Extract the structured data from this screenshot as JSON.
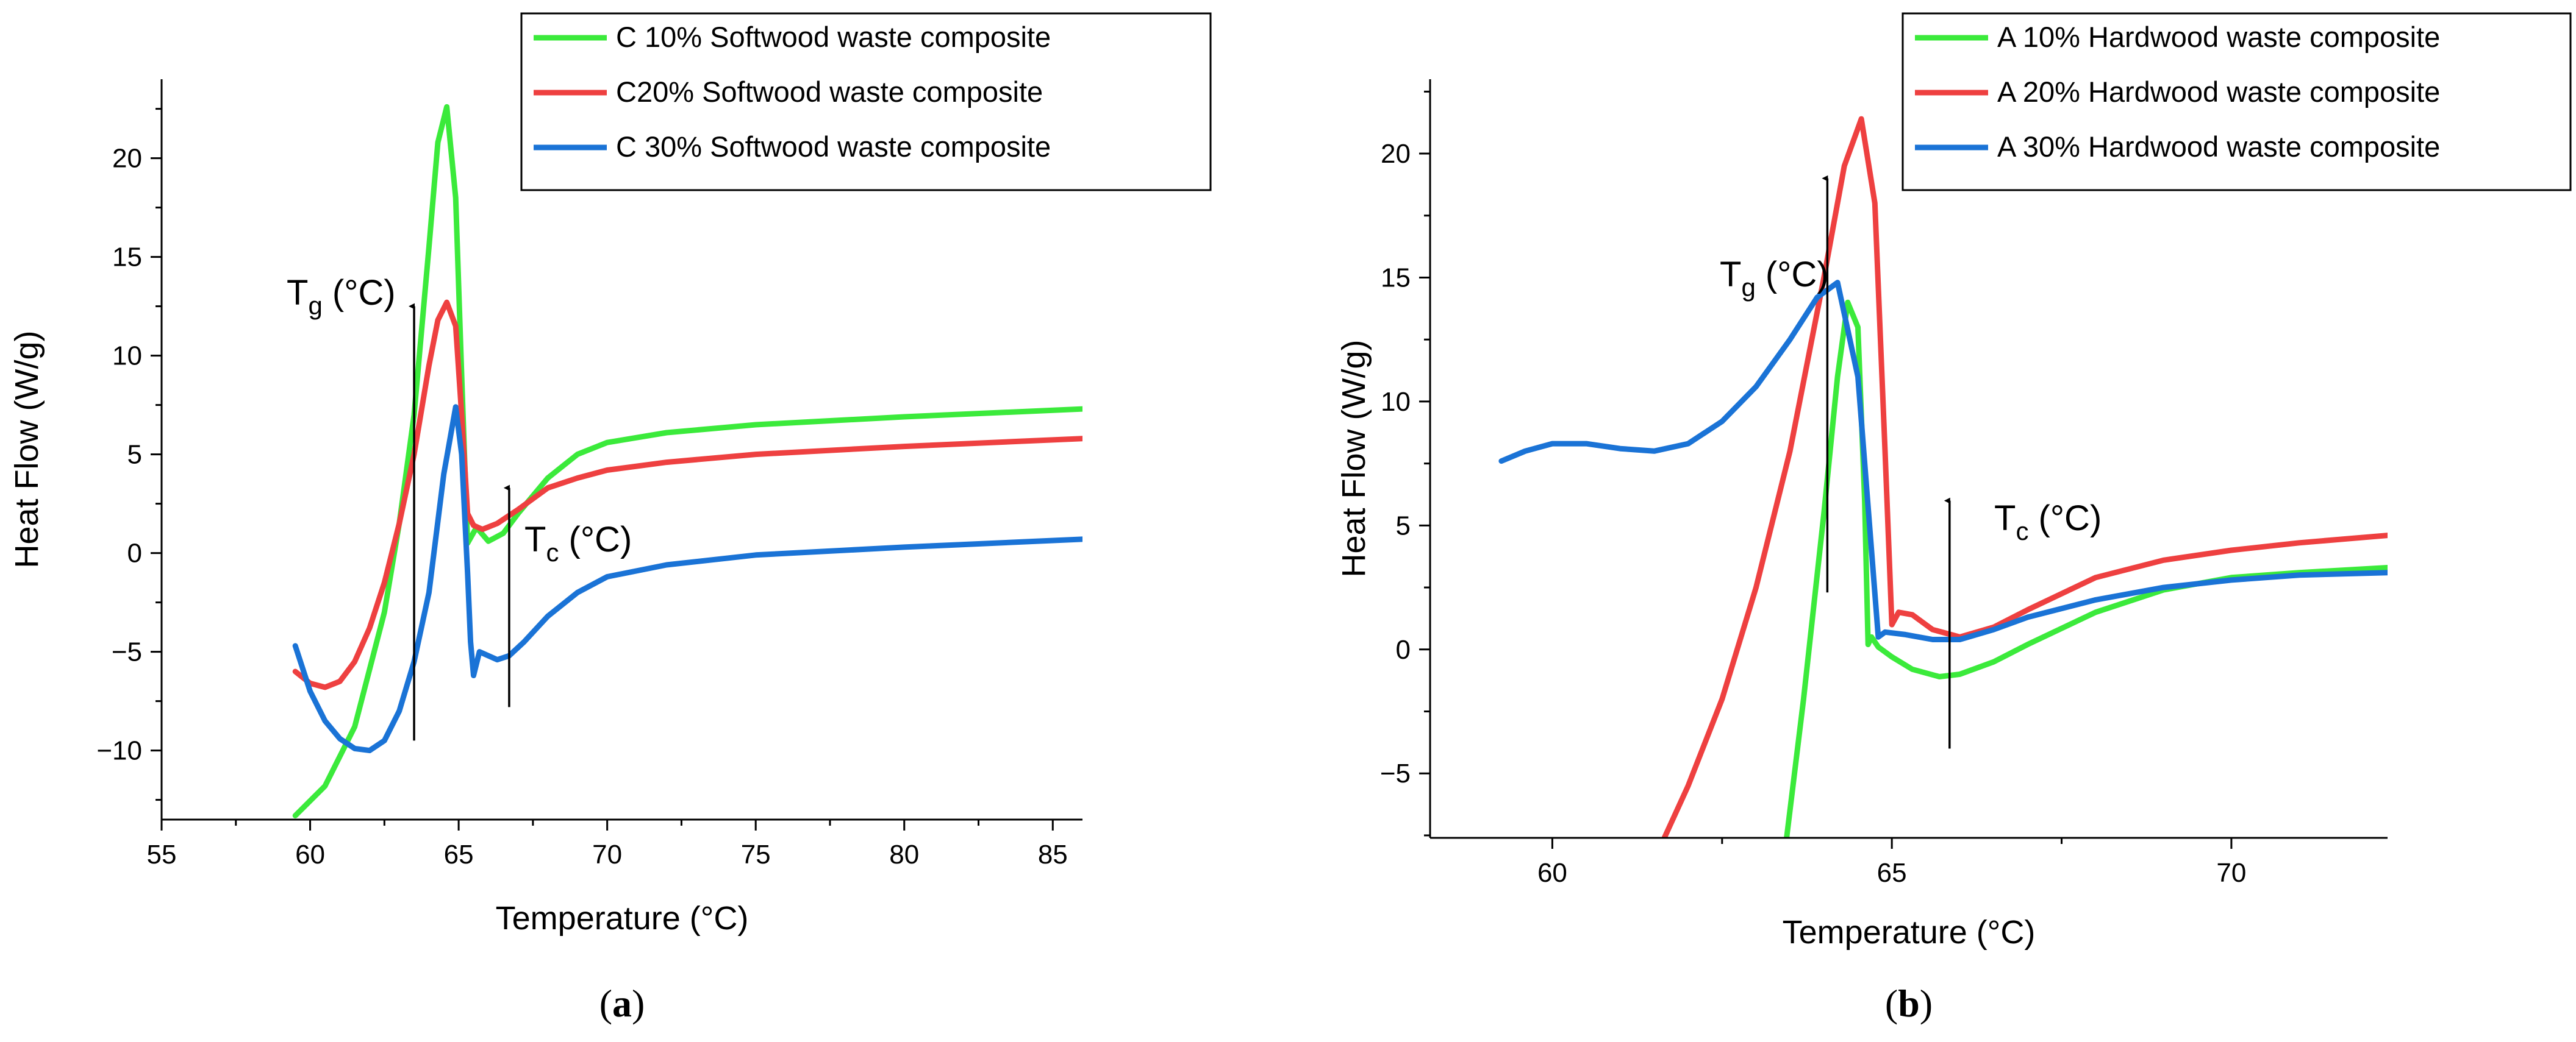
{
  "chart_data": [
    {
      "type": "line",
      "panel_label": {
        "open": "(",
        "letter": "a",
        "close": ")"
      },
      "xlabel": "Temperature (°C)",
      "ylabel": "Heat Flow (W/g)",
      "xlim": [
        55,
        86
      ],
      "ylim": [
        -13.5,
        24
      ],
      "xticks": [
        55,
        60,
        65,
        70,
        75,
        80,
        85
      ],
      "yticks": [
        -10,
        -5,
        0,
        5,
        10,
        15,
        20
      ],
      "legend_position": "top-right",
      "series": [
        {
          "name": "C 10% Softwood waste composite",
          "color": "#3bea3b",
          "x": [
            59.5,
            60.5,
            61.5,
            62.5,
            63.0,
            63.5,
            64.0,
            64.3,
            64.6,
            64.9,
            65.1,
            65.3,
            65.6,
            66.0,
            66.5,
            67.0,
            68.0,
            69.0,
            70.0,
            72.0,
            75.0,
            80.0,
            86.0
          ],
          "y": [
            -13.3,
            -11.8,
            -8.8,
            -3.0,
            1.5,
            7.0,
            15.5,
            20.8,
            22.6,
            18.0,
            9.0,
            0.5,
            1.3,
            0.6,
            1.0,
            2.0,
            3.8,
            5.0,
            5.6,
            6.1,
            6.5,
            6.9,
            7.3
          ]
        },
        {
          "name": "C20% Softwood waste composite",
          "color": "#ee4040",
          "x": [
            59.5,
            60.0,
            60.5,
            61.0,
            61.5,
            62.0,
            62.5,
            63.0,
            63.5,
            64.0,
            64.3,
            64.6,
            64.9,
            65.1,
            65.3,
            65.5,
            65.8,
            66.3,
            67.0,
            68.0,
            69.0,
            70.0,
            72.0,
            75.0,
            80.0,
            86.0
          ],
          "y": [
            -6.0,
            -6.6,
            -6.8,
            -6.5,
            -5.5,
            -3.8,
            -1.5,
            1.5,
            5.0,
            9.5,
            11.8,
            12.7,
            11.5,
            7.0,
            2.0,
            1.4,
            1.2,
            1.5,
            2.2,
            3.3,
            3.8,
            4.2,
            4.6,
            5.0,
            5.4,
            5.8
          ]
        },
        {
          "name": "C 30% Softwood waste composite",
          "color": "#1a73d6",
          "x": [
            59.5,
            60.0,
            60.5,
            61.0,
            61.5,
            62.0,
            62.5,
            63.0,
            63.5,
            64.0,
            64.5,
            64.9,
            65.1,
            65.3,
            65.4,
            65.5,
            65.7,
            66.0,
            66.3,
            66.7,
            67.2,
            68.0,
            69.0,
            70.0,
            72.0,
            75.0,
            80.0,
            86.0
          ],
          "y": [
            -4.7,
            -7.0,
            -8.5,
            -9.4,
            -9.9,
            -10.0,
            -9.5,
            -8.0,
            -5.5,
            -2.0,
            4.0,
            7.4,
            5.0,
            -1.0,
            -4.5,
            -6.2,
            -5.0,
            -5.2,
            -5.4,
            -5.2,
            -4.5,
            -3.2,
            -2.0,
            -1.2,
            -0.6,
            -0.1,
            0.3,
            0.7
          ]
        }
      ],
      "annotations": [
        {
          "main": "T",
          "sub": "g",
          "suffix": " (°C)",
          "arrow_x": 63.5,
          "arrow_from": -9.5,
          "arrow_to": 12.5
        },
        {
          "main": "T",
          "sub": "c",
          "suffix": " (°C)",
          "arrow_x": 66.7,
          "arrow_from": -7.8,
          "arrow_to": 3.3
        }
      ]
    },
    {
      "type": "line",
      "panel_label": {
        "open": "(",
        "letter": "b",
        "close": ")"
      },
      "xlabel": "Temperature (°C)",
      "ylabel": "Heat Flow (W/g)",
      "xlim": [
        58.2,
        72.3
      ],
      "ylim": [
        -7.6,
        23
      ],
      "xticks": [
        60,
        65,
        70
      ],
      "yticks": [
        -5,
        0,
        5,
        10,
        15,
        20
      ],
      "legend_position": "top-right",
      "series": [
        {
          "name": "A 10% Hardwood waste composite",
          "color": "#3bea3b",
          "x": [
            63.45,
            63.7,
            64.0,
            64.2,
            64.35,
            64.5,
            64.6,
            64.65,
            64.7,
            64.8,
            65.0,
            65.3,
            65.7,
            66.0,
            66.5,
            67.0,
            68.0,
            69.0,
            70.0,
            71.0,
            72.3
          ],
          "y": [
            -7.6,
            -2.0,
            5.5,
            11.0,
            14.0,
            13.0,
            6.0,
            0.2,
            0.5,
            0.1,
            -0.3,
            -0.8,
            -1.1,
            -1.0,
            -0.5,
            0.2,
            1.5,
            2.4,
            2.9,
            3.1,
            3.3
          ]
        },
        {
          "name": "A 20% Hardwood waste composite",
          "color": "#ee4040",
          "x": [
            61.65,
            62.0,
            62.5,
            63.0,
            63.5,
            64.0,
            64.3,
            64.55,
            64.75,
            64.9,
            65.0,
            65.1,
            65.3,
            65.6,
            66.0,
            66.5,
            67.0,
            68.0,
            69.0,
            70.0,
            71.0,
            72.3
          ],
          "y": [
            -7.6,
            -5.5,
            -2.0,
            2.5,
            8.0,
            15.0,
            19.5,
            21.4,
            18.0,
            8.0,
            1.0,
            1.5,
            1.4,
            0.8,
            0.5,
            0.9,
            1.6,
            2.9,
            3.6,
            4.0,
            4.3,
            4.6
          ]
        },
        {
          "name": "A 30% Hardwood waste composite",
          "color": "#1a73d6",
          "x": [
            59.25,
            59.6,
            60.0,
            60.5,
            61.0,
            61.5,
            62.0,
            62.5,
            63.0,
            63.5,
            63.9,
            64.2,
            64.5,
            64.7,
            64.8,
            64.85,
            64.9,
            65.2,
            65.6,
            66.0,
            66.5,
            67.0,
            68.0,
            69.0,
            70.0,
            71.0,
            72.3
          ],
          "y": [
            7.6,
            8.0,
            8.3,
            8.3,
            8.1,
            8.0,
            8.3,
            9.2,
            10.6,
            12.5,
            14.2,
            14.8,
            11.0,
            4.0,
            0.5,
            0.6,
            0.7,
            0.6,
            0.4,
            0.4,
            0.8,
            1.3,
            2.0,
            2.5,
            2.8,
            3.0,
            3.1
          ]
        }
      ],
      "annotations": [
        {
          "main": "T",
          "sub": "g",
          "suffix": " (°C)",
          "arrow_x": 64.05,
          "arrow_from": 2.3,
          "arrow_to": 19.0
        },
        {
          "main": "T",
          "sub": "c",
          "suffix": " (°C)",
          "arrow_x": 65.85,
          "arrow_from": -4.0,
          "arrow_to": 6.0
        }
      ]
    }
  ]
}
